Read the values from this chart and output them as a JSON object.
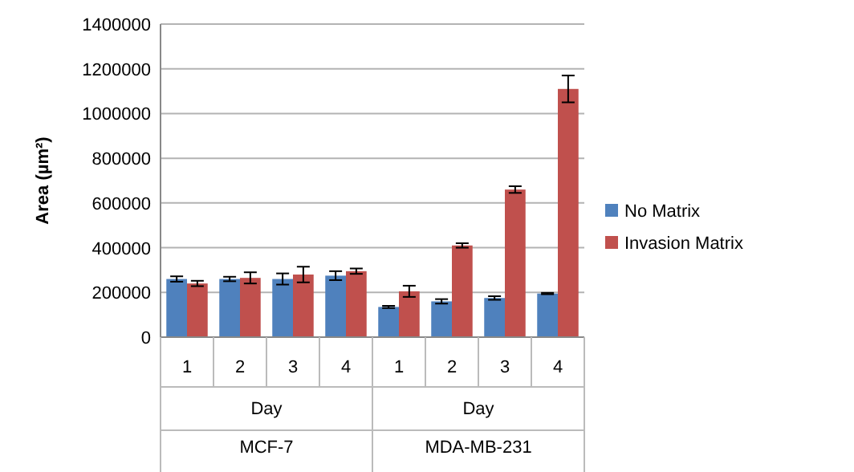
{
  "chart_data": {
    "type": "bar",
    "ylabel": "Area (µm²)",
    "categories": [
      "1",
      "2",
      "3",
      "4",
      "1",
      "2",
      "3",
      "4"
    ],
    "annotations": [
      "Day",
      "Day",
      "MCF-7",
      "MDA-MB-231"
    ],
    "series": [
      {
        "name": "No Matrix",
        "color": "#4f81bd",
        "values": [
          260000,
          260000,
          260000,
          275000,
          135000,
          160000,
          175000,
          195000
        ],
        "errors": [
          12000,
          10000,
          25000,
          20000,
          5000,
          10000,
          8000,
          3000
        ]
      },
      {
        "name": "Invasion Matrix",
        "color": "#c0504d",
        "values": [
          240000,
          265000,
          280000,
          295000,
          205000,
          410000,
          660000,
          1110000
        ],
        "errors": [
          12000,
          25000,
          35000,
          12000,
          25000,
          10000,
          15000,
          60000
        ]
      }
    ],
    "ylim": [
      0,
      1400000
    ],
    "yticks": [
      0,
      200000,
      400000,
      600000,
      800000,
      1000000,
      1200000,
      1400000
    ],
    "grid": "y",
    "legend": "right"
  }
}
